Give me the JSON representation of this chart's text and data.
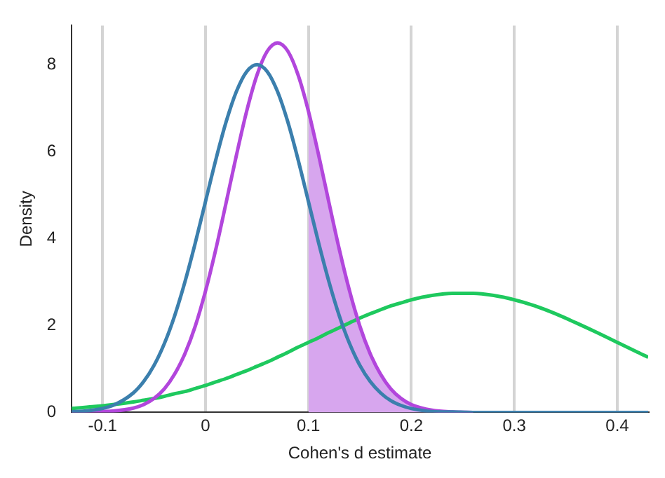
{
  "chart_data": {
    "type": "line",
    "xlabel": "Cohen's d estimate",
    "ylabel": "Density",
    "x": [
      -0.13,
      -0.11,
      -0.09,
      -0.07,
      -0.06,
      -0.05,
      -0.04,
      -0.03,
      -0.02,
      -0.01,
      0,
      0.01,
      0.02,
      0.03,
      0.04,
      0.05,
      0.06,
      0.07,
      0.08,
      0.09,
      0.1,
      0.11,
      0.12,
      0.13,
      0.14,
      0.15,
      0.16,
      0.17,
      0.18,
      0.19,
      0.2,
      0.22,
      0.24,
      0.26,
      0.28,
      0.3,
      0.32,
      0.34,
      0.36,
      0.38,
      0.4,
      0.42,
      0.43
    ],
    "series": [
      {
        "type": "area",
        "color": "#d7a6ee",
        "x": [
          0.1,
          0.11,
          0.12,
          0.13,
          0.14,
          0.15,
          0.16,
          0.17,
          0.18,
          0.19,
          0.2,
          0.22,
          0.24,
          0.26
        ],
        "values": [
          6.93,
          5.91,
          4.82,
          3.75,
          2.79,
          1.98,
          1.35,
          0.88,
          0.54,
          0.32,
          0.18,
          0.05,
          0.01,
          0
        ]
      },
      {
        "color": "#3b7fad",
        "values": [
          0.01,
          0.05,
          0.16,
          0.45,
          0.71,
          1.08,
          1.58,
          2.22,
          3.0,
          3.89,
          4.85,
          5.81,
          6.68,
          7.38,
          7.84,
          8,
          7.84,
          7.38,
          6.68,
          5.81,
          4.85,
          3.89,
          3.0,
          2.22,
          1.58,
          1.08,
          0.71,
          0.45,
          0.27,
          0.16,
          0.09,
          0.02,
          0.01,
          0,
          0,
          0,
          0,
          0,
          0,
          0,
          0,
          0,
          0
        ]
      },
      {
        "color": "#b246dc",
        "values": [
          0,
          0.01,
          0.03,
          0.1,
          0.18,
          0.32,
          0.54,
          0.88,
          1.35,
          1.98,
          2.79,
          3.75,
          4.82,
          5.91,
          6.93,
          7.76,
          8.31,
          8.5,
          8.31,
          7.76,
          6.93,
          5.91,
          4.82,
          3.75,
          2.79,
          1.98,
          1.35,
          0.88,
          0.54,
          0.32,
          0.18,
          0.05,
          0.01,
          0,
          null,
          null,
          null,
          null,
          null,
          null,
          null,
          null,
          null
        ]
      },
      {
        "color": "#1ec95e",
        "values": [
          0.09,
          0.13,
          0.18,
          0.24,
          0.28,
          0.32,
          0.37,
          0.43,
          0.48,
          0.55,
          0.62,
          0.7,
          0.78,
          0.87,
          0.96,
          1.06,
          1.16,
          1.27,
          1.38,
          1.5,
          1.61,
          1.72,
          1.84,
          1.95,
          2.06,
          2.17,
          2.27,
          2.36,
          2.45,
          2.52,
          2.59,
          2.69,
          2.74,
          2.74,
          2.69,
          2.59,
          2.45,
          2.27,
          2.06,
          1.84,
          1.61,
          1.38,
          1.27
        ]
      }
    ],
    "xlim": [
      -0.13,
      0.43
    ],
    "ylim": [
      0,
      8.9
    ],
    "xticks": [
      -0.1,
      0,
      0.1,
      0.2,
      0.3,
      0.4
    ],
    "yticks": [
      0,
      2,
      4,
      6,
      8
    ],
    "grid": "x",
    "legend": false,
    "marker": "none",
    "line_style": "solid"
  }
}
